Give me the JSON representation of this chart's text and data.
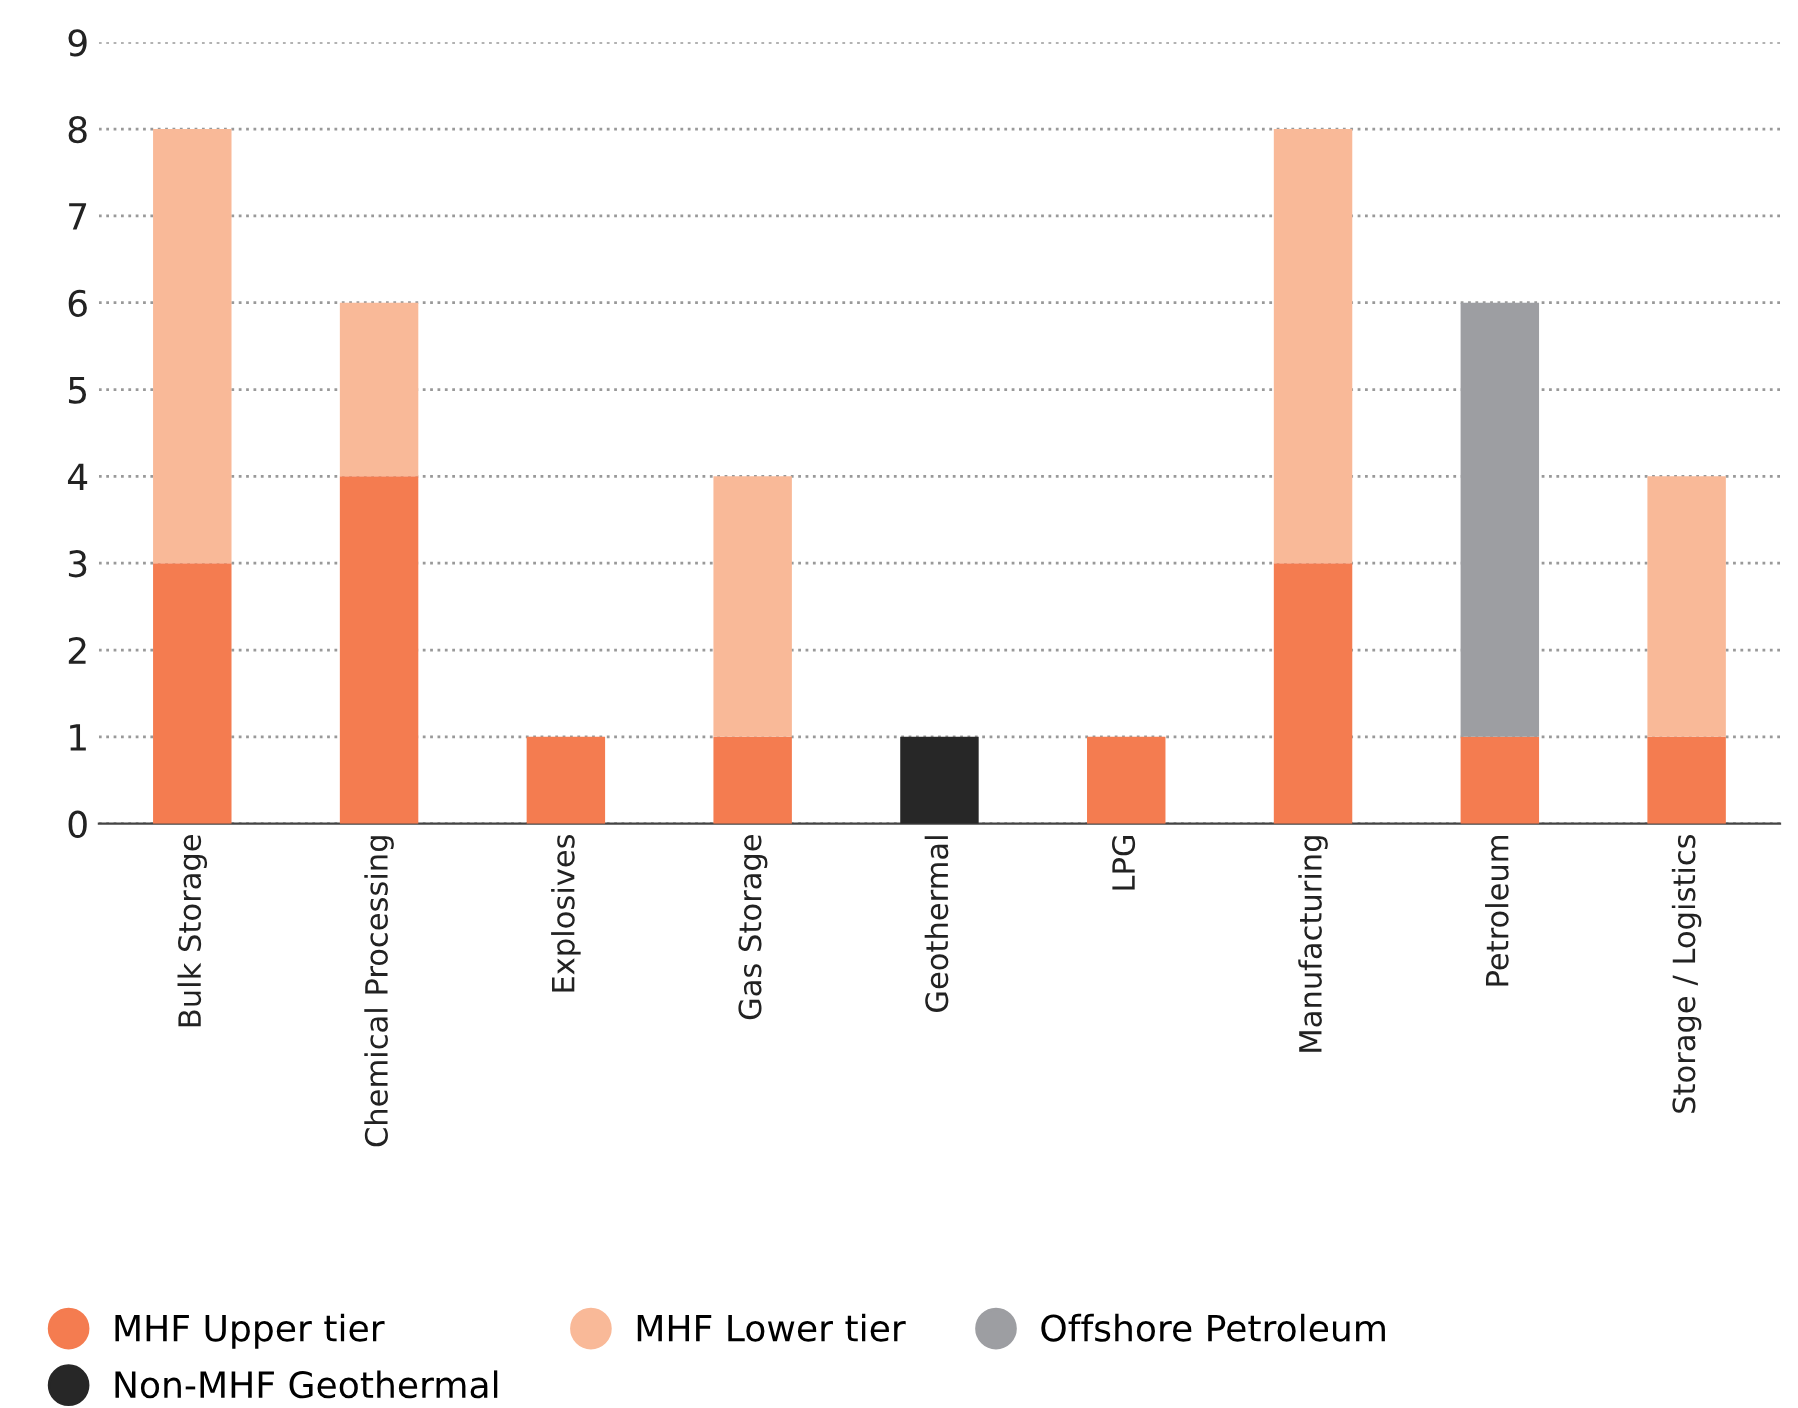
{
  "chart_data": {
    "type": "bar",
    "stacked": true,
    "categories": [
      "Bulk Storage",
      "Chemical Processing",
      "Explosives",
      "Gas Storage",
      "Geothermal",
      "LPG",
      "Manufacturing",
      "Petroleum",
      "Storage / Logistics"
    ],
    "series": [
      {
        "name": "MHF Upper tier",
        "color": "#f47c50",
        "values": [
          3,
          4,
          1,
          1,
          null,
          1,
          3,
          1,
          1
        ]
      },
      {
        "name": "MHF Lower tier",
        "color": "#f9b998",
        "values": [
          5,
          2,
          null,
          3,
          null,
          null,
          5,
          null,
          3
        ]
      },
      {
        "name": "Offshore Petroleum",
        "color": "#9d9ea2",
        "values": [
          null,
          null,
          null,
          null,
          null,
          null,
          null,
          5,
          null
        ]
      },
      {
        "name": "Non-MHF Geothermal",
        "color": "#272727",
        "values": [
          null,
          null,
          null,
          null,
          1,
          null,
          null,
          null,
          null
        ]
      }
    ],
    "ylim": [
      0,
      9
    ],
    "yticks": [
      0,
      1,
      2,
      3,
      4,
      5,
      6,
      7,
      8,
      9
    ],
    "grid": "y",
    "legend": "bottom",
    "marker": "circle"
  }
}
